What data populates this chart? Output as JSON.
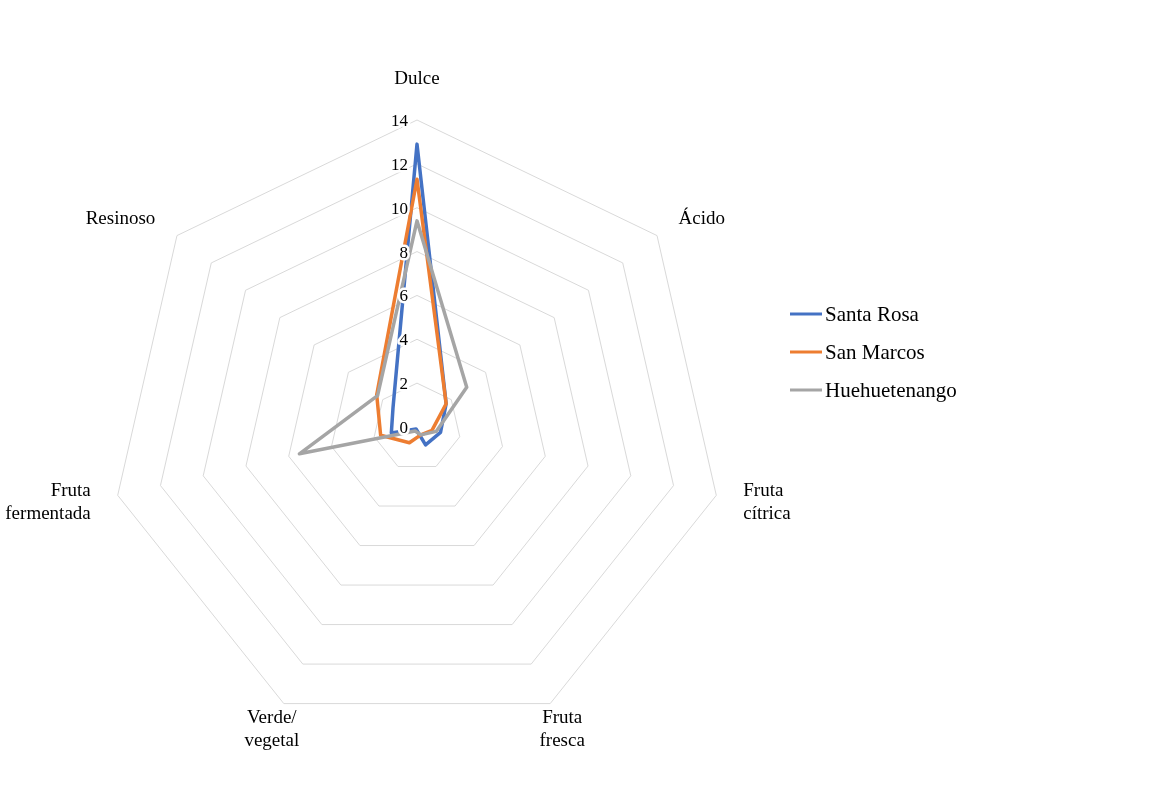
{
  "chart_data": {
    "type": "radar",
    "categories": [
      "Dulce",
      "Ácido",
      "Fruta cítrica",
      "Fruta fresca",
      "Verde/ vegetal",
      "Fruta fermentada",
      "Resinoso"
    ],
    "series": [
      {
        "name": "Santa Rosa",
        "color": "#4472c4",
        "values": [
          12.9,
          1.7,
          1.1,
          0.9,
          0.1,
          1.2,
          1.4
        ]
      },
      {
        "name": "San Marcos",
        "color": "#ed7d31",
        "values": [
          11.3,
          1.7,
          0.7,
          0.4,
          0.8,
          1.7,
          2.35
        ]
      },
      {
        "name": "Huehuetenango",
        "color": "#a5a5a5",
        "values": [
          9.4,
          2.9,
          0.9,
          0.4,
          0.2,
          5.5,
          2.3
        ]
      }
    ],
    "ylim": [
      0,
      14
    ],
    "yticks": [
      0,
      2,
      4,
      6,
      8,
      10,
      12,
      14
    ],
    "grid": true,
    "legend": "right",
    "marker": "none",
    "line_style": "solid"
  }
}
